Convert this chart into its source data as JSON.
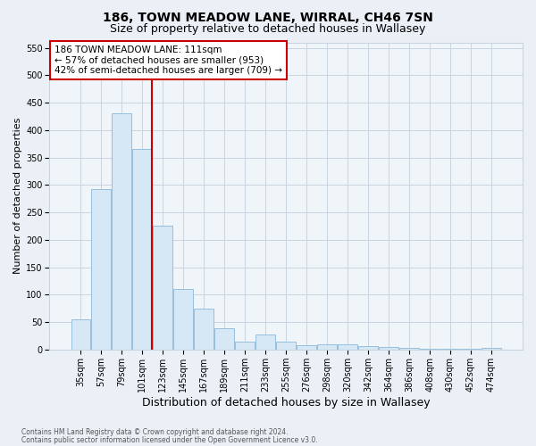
{
  "title1": "186, TOWN MEADOW LANE, WIRRAL, CH46 7SN",
  "title2": "Size of property relative to detached houses in Wallasey",
  "xlabel": "Distribution of detached houses by size in Wallasey",
  "ylabel": "Number of detached properties",
  "footer1": "Contains HM Land Registry data © Crown copyright and database right 2024.",
  "footer2": "Contains public sector information licensed under the Open Government Licence v3.0.",
  "annotation_line1": "186 TOWN MEADOW LANE: 111sqm",
  "annotation_line2": "← 57% of detached houses are smaller (953)",
  "annotation_line3": "42% of semi-detached houses are larger (709) →",
  "bar_categories": [
    "35sqm",
    "57sqm",
    "79sqm",
    "101sqm",
    "123sqm",
    "145sqm",
    "167sqm",
    "189sqm",
    "211sqm",
    "233sqm",
    "255sqm",
    "276sqm",
    "298sqm",
    "320sqm",
    "342sqm",
    "364sqm",
    "386sqm",
    "408sqm",
    "430sqm",
    "452sqm",
    "474sqm"
  ],
  "bar_values": [
    55,
    293,
    430,
    365,
    225,
    110,
    75,
    38,
    15,
    27,
    15,
    8,
    10,
    9,
    6,
    5,
    3,
    2,
    2,
    1,
    3
  ],
  "bar_color": "#d6e8f5",
  "bar_edge_color": "#8ab8d8",
  "vline_color": "#cc0000",
  "annotation_box_color": "#cc0000",
  "ylim": [
    0,
    560
  ],
  "yticks": [
    0,
    50,
    100,
    150,
    200,
    250,
    300,
    350,
    400,
    450,
    500,
    550
  ],
  "bg_color": "#eaf0f6",
  "plot_bg_color": "#f0f5fa",
  "grid_color": "#c8d4e0",
  "title_fontsize": 10,
  "subtitle_fontsize": 9,
  "axis_label_fontsize": 8,
  "tick_fontsize": 7,
  "annotation_fontsize": 7.5,
  "footer_fontsize": 5.5
}
